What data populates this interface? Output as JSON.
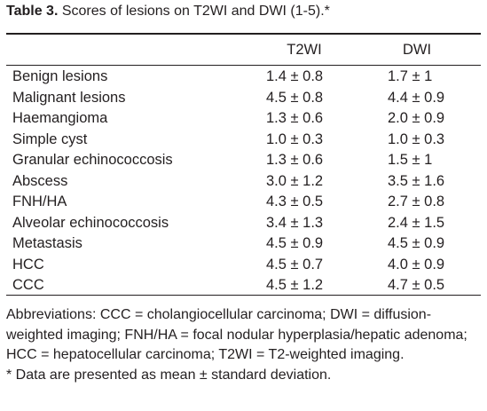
{
  "title": {
    "label": "Table 3.",
    "text": "Scores of lesions on T2WI and DWI (1-5).*"
  },
  "table": {
    "columns": [
      "T2WI",
      "DWI"
    ],
    "rows": [
      [
        "Benign lesions",
        "1.4 ± 0.8",
        "1.7 ± 1"
      ],
      [
        "Malignant lesions",
        "4.5 ± 0.8",
        "4.4 ± 0.9"
      ],
      [
        "Haemangioma",
        "1.3 ± 0.6",
        "2.0 ± 0.9"
      ],
      [
        "Simple cyst",
        "1.0 ± 0.3",
        "1.0 ± 0.3"
      ],
      [
        "Granular echinococcosis",
        "1.3 ± 0.6",
        "1.5 ± 1"
      ],
      [
        "Abscess",
        "3.0 ± 1.2",
        "3.5 ± 1.6"
      ],
      [
        "FNH/HA",
        "4.3 ± 0.5",
        "2.7 ± 0.8"
      ],
      [
        "Alveolar echinococcosis",
        "3.4 ± 1.3",
        "2.4 ± 1.5"
      ],
      [
        "Metastasis",
        "4.5 ± 0.9",
        "4.5 ± 0.9"
      ],
      [
        "HCC",
        "4.5 ± 0.7",
        "4.0 ± 0.9"
      ],
      [
        "CCC",
        "4.5 ± 1.2",
        "4.7 ± 0.5"
      ]
    ]
  },
  "footnotes": [
    "Abbreviations: CCC = cholangiocellular carcinoma; DWI = diffusion-weighted imaging; FNH/HA = focal nodular hyperplasia/hepatic adenoma; HCC = hepatocellular carcinoma; T2WI = T2-weighted imaging.",
    "* Data are presented as mean ± standard deviation."
  ]
}
